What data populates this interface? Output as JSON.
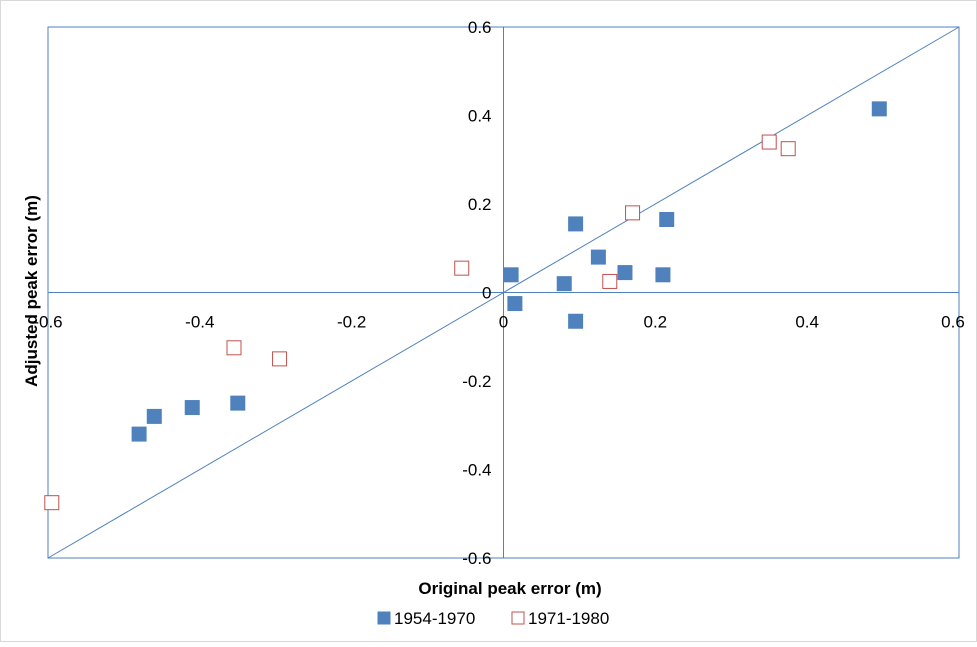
{
  "chart_data": {
    "type": "scatter",
    "title": "",
    "xlabel": "Original peak error (m)",
    "ylabel": "Adjusted peak error (m)",
    "xlim": [
      -0.6,
      0.6
    ],
    "ylim": [
      -0.6,
      0.6
    ],
    "x_ticks": [
      "-0.6",
      "-0.4",
      "-0.2",
      "0",
      "0.2",
      "0.4",
      "0.6"
    ],
    "y_ticks": [
      "0.6",
      "0.4",
      "0.2",
      "0",
      "-0.2",
      "-0.4",
      "-0.6"
    ],
    "grid": false,
    "legend_position": "bottom",
    "series": [
      {
        "name": "1954-1970",
        "marker": "filled-square",
        "color": "#4f81bd",
        "points": [
          {
            "x": -0.48,
            "y": -0.32
          },
          {
            "x": -0.46,
            "y": -0.28
          },
          {
            "x": -0.41,
            "y": -0.26
          },
          {
            "x": -0.35,
            "y": -0.25
          },
          {
            "x": 0.01,
            "y": 0.04
          },
          {
            "x": 0.015,
            "y": -0.025
          },
          {
            "x": 0.08,
            "y": 0.02
          },
          {
            "x": 0.095,
            "y": 0.155
          },
          {
            "x": 0.095,
            "y": -0.065
          },
          {
            "x": 0.125,
            "y": 0.08
          },
          {
            "x": 0.16,
            "y": 0.045
          },
          {
            "x": 0.21,
            "y": 0.04
          },
          {
            "x": 0.215,
            "y": 0.165
          },
          {
            "x": 0.495,
            "y": 0.415
          }
        ]
      },
      {
        "name": "1971-1980",
        "marker": "open-square",
        "color": "#c0504d",
        "points": [
          {
            "x": -0.595,
            "y": -0.475
          },
          {
            "x": -0.355,
            "y": -0.125
          },
          {
            "x": -0.295,
            "y": -0.15
          },
          {
            "x": -0.055,
            "y": 0.055
          },
          {
            "x": 0.14,
            "y": 0.025
          },
          {
            "x": 0.17,
            "y": 0.18
          },
          {
            "x": 0.35,
            "y": 0.34
          },
          {
            "x": 0.375,
            "y": 0.325
          }
        ]
      }
    ],
    "reference_line": {
      "from": [
        -0.6,
        -0.6
      ],
      "to": [
        0.6,
        0.6
      ],
      "color": "#4f81bd"
    }
  }
}
